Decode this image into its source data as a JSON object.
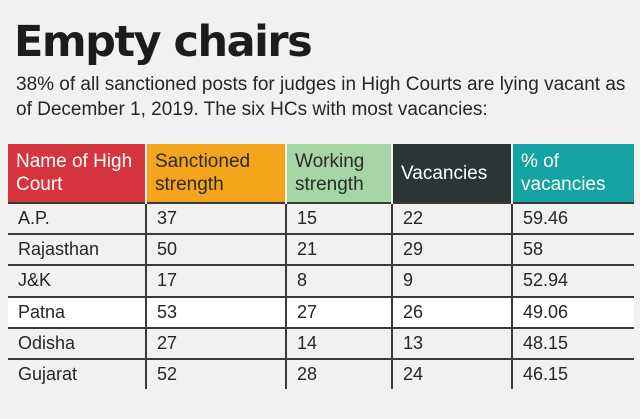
{
  "header": {
    "title": "Empty chairs",
    "subtitle": "38% of all sanctioned posts for judges in High Courts are lying vacant as of December 1, 2019. The six HCs with most vacancies:"
  },
  "colors": {
    "name_header": "#d63540",
    "sanctioned_header": "#f4a51c",
    "working_header": "#a7d6a6",
    "vacancies_header": "#2d3436",
    "percent_header": "#15a2a2"
  },
  "chart_data": {
    "type": "table",
    "title": "Empty chairs",
    "subtitle": "38% of all sanctioned posts for judges in High Courts are lying vacant as of December 1, 2019. The six HCs with most vacancies:",
    "columns": [
      "Name of High Court",
      "Sanctioned strength",
      "Working strength",
      "Vacancies",
      "% of vacancies"
    ],
    "rows": [
      [
        "A.P.",
        "37",
        "15",
        "22",
        "59.46"
      ],
      [
        "Rajasthan",
        "50",
        "21",
        "29",
        "58"
      ],
      [
        "J&K",
        "17",
        "8",
        "9",
        "52.94"
      ],
      [
        "Patna",
        "53",
        "27",
        "26",
        "49.06"
      ],
      [
        "Odisha",
        "27",
        "14",
        "13",
        "48.15"
      ],
      [
        "Gujarat",
        "52",
        "28",
        "24",
        "46.15"
      ]
    ]
  }
}
